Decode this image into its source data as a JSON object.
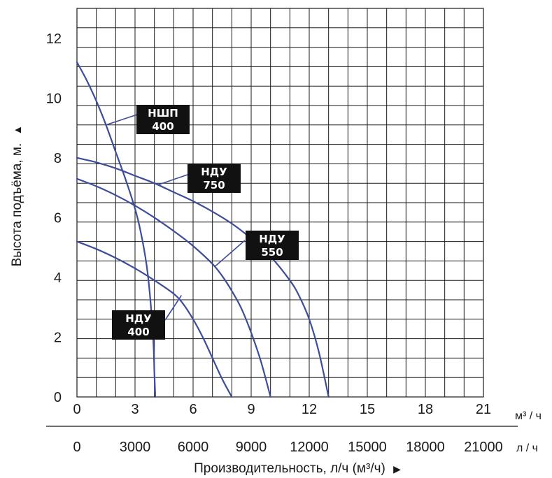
{
  "chart_data": {
    "type": "line",
    "y_axis": {
      "label": "Высота подъёма, м.",
      "arrow": "▲",
      "ticks": [
        0,
        2,
        4,
        6,
        8,
        10,
        12
      ],
      "ylim": [
        0,
        13
      ],
      "minor_step": 0.65
    },
    "x_axis_primary": {
      "unit_label": "м³ / ч",
      "ticks": [
        0,
        3,
        6,
        9,
        12,
        15,
        18,
        21
      ],
      "xlim": [
        0,
        21
      ],
      "minor_step": 1
    },
    "x_axis_secondary": {
      "unit_label": "л / ч",
      "ticks": [
        0,
        3000,
        6000,
        9000,
        12000,
        15000,
        18000,
        21000
      ]
    },
    "x_title": "Производительность, л/ч (м³/ч)",
    "x_title_arrow": "▶",
    "curve_color": "#3d4d9a",
    "label_box_color": "#111111",
    "grid": true,
    "series": [
      {
        "name": "НШП 400",
        "label_lines": [
          "НШП",
          "400"
        ],
        "x": [
          0,
          0.5,
          1,
          1.5,
          2,
          2.5,
          3,
          3.3,
          3.6,
          3.8,
          3.95,
          4.0,
          4.05
        ],
        "y": [
          11.2,
          10.6,
          9.9,
          9.1,
          8.2,
          7.3,
          6.3,
          5.5,
          4.4,
          3.2,
          1.8,
          0.8,
          0
        ]
      },
      {
        "name": "НДУ 750",
        "label_lines": [
          "НДУ",
          "750"
        ],
        "x": [
          0,
          1,
          2,
          3,
          4,
          5,
          6,
          7,
          8,
          9,
          10,
          11,
          11.5,
          12,
          12.5,
          13
        ],
        "y": [
          8.0,
          7.85,
          7.65,
          7.4,
          7.15,
          6.85,
          6.55,
          6.2,
          5.8,
          5.3,
          4.7,
          3.9,
          3.35,
          2.6,
          1.5,
          0
        ]
      },
      {
        "name": "НДУ 550",
        "label_lines": [
          "НДУ",
          "550"
        ],
        "x": [
          0,
          1,
          2,
          3,
          4,
          5,
          6,
          7,
          7.5,
          8,
          8.5,
          9,
          9.5,
          10
        ],
        "y": [
          7.3,
          7.05,
          6.75,
          6.4,
          6.0,
          5.55,
          5.05,
          4.45,
          4.05,
          3.55,
          2.95,
          2.15,
          1.2,
          0
        ]
      },
      {
        "name": "НДУ 400",
        "label_lines": [
          "НДУ",
          "400"
        ],
        "x": [
          0,
          1,
          2,
          3,
          4,
          5,
          5.5,
          6,
          6.5,
          7,
          7.5,
          8
        ],
        "y": [
          5.2,
          4.95,
          4.65,
          4.3,
          3.9,
          3.45,
          3.1,
          2.6,
          2.0,
          1.3,
          0.6,
          0
        ]
      }
    ]
  }
}
